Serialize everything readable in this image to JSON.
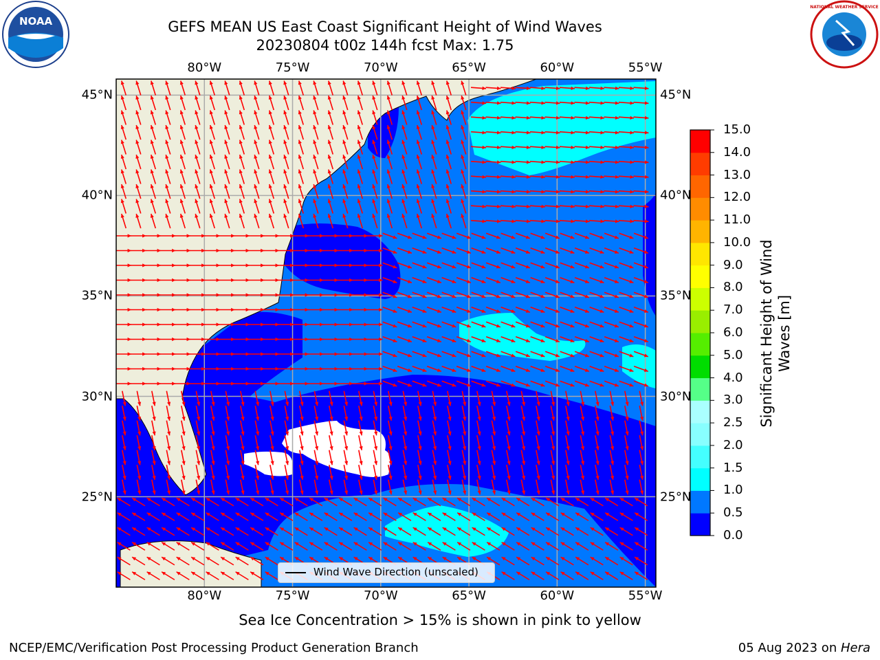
{
  "title": {
    "line1": "GEFS MEAN US East Coast Significant Height of Wind Waves",
    "line2": "20230804 t00z 144h fcst   Max: 1.75"
  },
  "logos": {
    "left": "noaa-logo",
    "left_text": "NOAA",
    "right": "nws-logo",
    "right_text": "NATIONAL WEATHER SERVICE"
  },
  "map": {
    "lon_ticks": [
      "80°W",
      "75°W",
      "70°W",
      "65°W",
      "60°W",
      "55°W"
    ],
    "lon_values": [
      -80,
      -75,
      -70,
      -65,
      -60,
      -55
    ],
    "lat_ticks": [
      "45°N",
      "40°N",
      "35°N",
      "30°N",
      "25°N"
    ],
    "lat_values": [
      45,
      40,
      35,
      30,
      25
    ],
    "extent": {
      "lon": [
        -85,
        -54.4
      ],
      "lat": [
        20.5,
        45.8
      ]
    },
    "gridlines": true,
    "wave_direction_arrows": "red"
  },
  "legend": {
    "label": "Wind Wave Direction (unscaled)",
    "placement": "bottom-center"
  },
  "colorbar": {
    "title_line1": "Significant Height of Wind",
    "title_line2": "Waves [m]",
    "ticks": [
      "0.0",
      "0.5",
      "1.0",
      "1.5",
      "2.0",
      "2.5",
      "3.0",
      "4.0",
      "5.0",
      "6.0",
      "7.0",
      "8.0",
      "9.0",
      "10.0",
      "11.0",
      "12.0",
      "13.0",
      "14.0",
      "15.0"
    ],
    "colors": [
      "#0000ff",
      "#0078ff",
      "#00ffff",
      "#44ffff",
      "#88ffff",
      "#aaffff",
      "#55ff88",
      "#00dd00",
      "#55ee00",
      "#99ee00",
      "#ccff00",
      "#ffff00",
      "#ffe600",
      "#ffb400",
      "#ff8c00",
      "#ff6600",
      "#ff3c00",
      "#ff0000"
    ]
  },
  "colors": {
    "land": "#eeeedc",
    "ocean_low": "#0000ff",
    "ocean_mid": "#0078ff",
    "ocean_high": "#00ffff",
    "arrow": "#ff0000",
    "grid": "#aaaaaa"
  },
  "sea_ice_note": "Sea Ice Concentration > 15% is shown in pink to yellow",
  "footer": {
    "left": "NCEP/EMC/Verification Post Processing Product Generation Branch",
    "right_date": "05 Aug 2023 on ",
    "right_host": "Hera"
  }
}
